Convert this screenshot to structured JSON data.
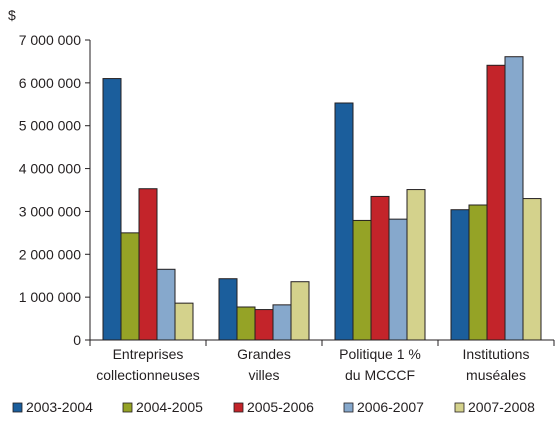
{
  "chart_data": {
    "type": "bar",
    "title": "",
    "xlabel": "",
    "ylabel": "$",
    "ylim": [
      0,
      7000000
    ],
    "yticks": [
      {
        "value": 0,
        "label": "0"
      },
      {
        "value": 1000000,
        "label": "1 000 000"
      },
      {
        "value": 2000000,
        "label": "2 000 000"
      },
      {
        "value": 3000000,
        "label": "3 000 000"
      },
      {
        "value": 4000000,
        "label": "4 000 000"
      },
      {
        "value": 5000000,
        "label": "5 000 000"
      },
      {
        "value": 6000000,
        "label": "6 000 000"
      },
      {
        "value": 7000000,
        "label": "7 000 000"
      }
    ],
    "categories": [
      [
        "Entreprises",
        "collectionneuses"
      ],
      [
        "Grandes",
        "villes"
      ],
      [
        "Politique 1 %",
        "du MCCCF"
      ],
      [
        "Institutions",
        "muséales"
      ]
    ],
    "series": [
      {
        "name": "2003-2004",
        "color": "#1b5e9c",
        "values": [
          6100000,
          1430000,
          5530000,
          3040000
        ]
      },
      {
        "name": "2004-2005",
        "color": "#95a326",
        "values": [
          2500000,
          770000,
          2790000,
          3150000
        ]
      },
      {
        "name": "2005-2006",
        "color": "#c3242a",
        "values": [
          3530000,
          710000,
          3350000,
          6410000
        ]
      },
      {
        "name": "2006-2007",
        "color": "#86a8cc",
        "values": [
          1650000,
          820000,
          2820000,
          6610000
        ]
      },
      {
        "name": "2007-2008",
        "color": "#d4d28c",
        "values": [
          860000,
          1360000,
          3510000,
          3300000
        ]
      }
    ],
    "grid": false,
    "legend": "bottom"
  }
}
